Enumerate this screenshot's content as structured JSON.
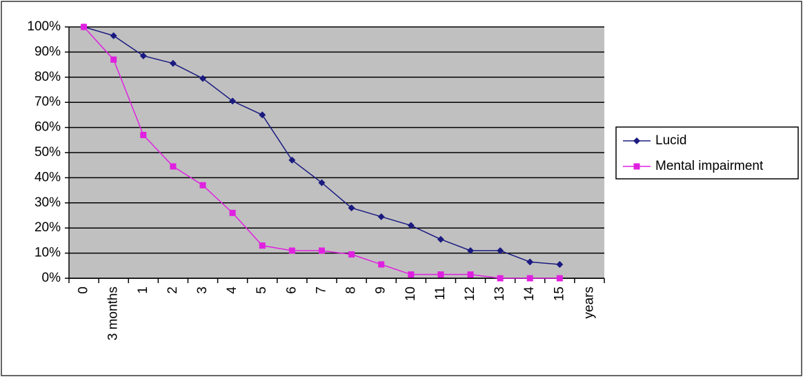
{
  "chart_data": {
    "type": "line",
    "categories": [
      "0",
      "3 months",
      "1",
      "2",
      "3",
      "4",
      "5",
      "6",
      "7",
      "8",
      "9",
      "10",
      "11",
      "12",
      "13",
      "14",
      "15",
      "years"
    ],
    "series": [
      {
        "name": "Lucid",
        "color": "#1a1a80",
        "marker": "diamond",
        "values": [
          100,
          96.5,
          88.5,
          85.5,
          79.5,
          70.5,
          65,
          47,
          38,
          28,
          24.5,
          21,
          15.5,
          11,
          11,
          6.5,
          5.5,
          null
        ]
      },
      {
        "name": "Mental impairment",
        "color": "#e020e0",
        "marker": "square",
        "values": [
          100,
          87,
          57,
          44.5,
          37,
          26,
          13,
          11,
          11,
          9.5,
          5.5,
          1.5,
          1.5,
          1.5,
          0,
          0,
          0,
          null
        ]
      }
    ],
    "ylim": [
      0,
      100
    ],
    "yticks": [
      {
        "value": 0,
        "label": "0%"
      },
      {
        "value": 10,
        "label": "10%"
      },
      {
        "value": 20,
        "label": "20%"
      },
      {
        "value": 30,
        "label": "30%"
      },
      {
        "value": 40,
        "label": "40%"
      },
      {
        "value": 50,
        "label": "50%"
      },
      {
        "value": 60,
        "label": "60%"
      },
      {
        "value": 70,
        "label": "70%"
      },
      {
        "value": 80,
        "label": "80%"
      },
      {
        "value": 90,
        "label": "90%"
      },
      {
        "value": 100,
        "label": "100%"
      }
    ],
    "grid": true,
    "plot_background": "#c0c0c0",
    "legend": "right"
  }
}
